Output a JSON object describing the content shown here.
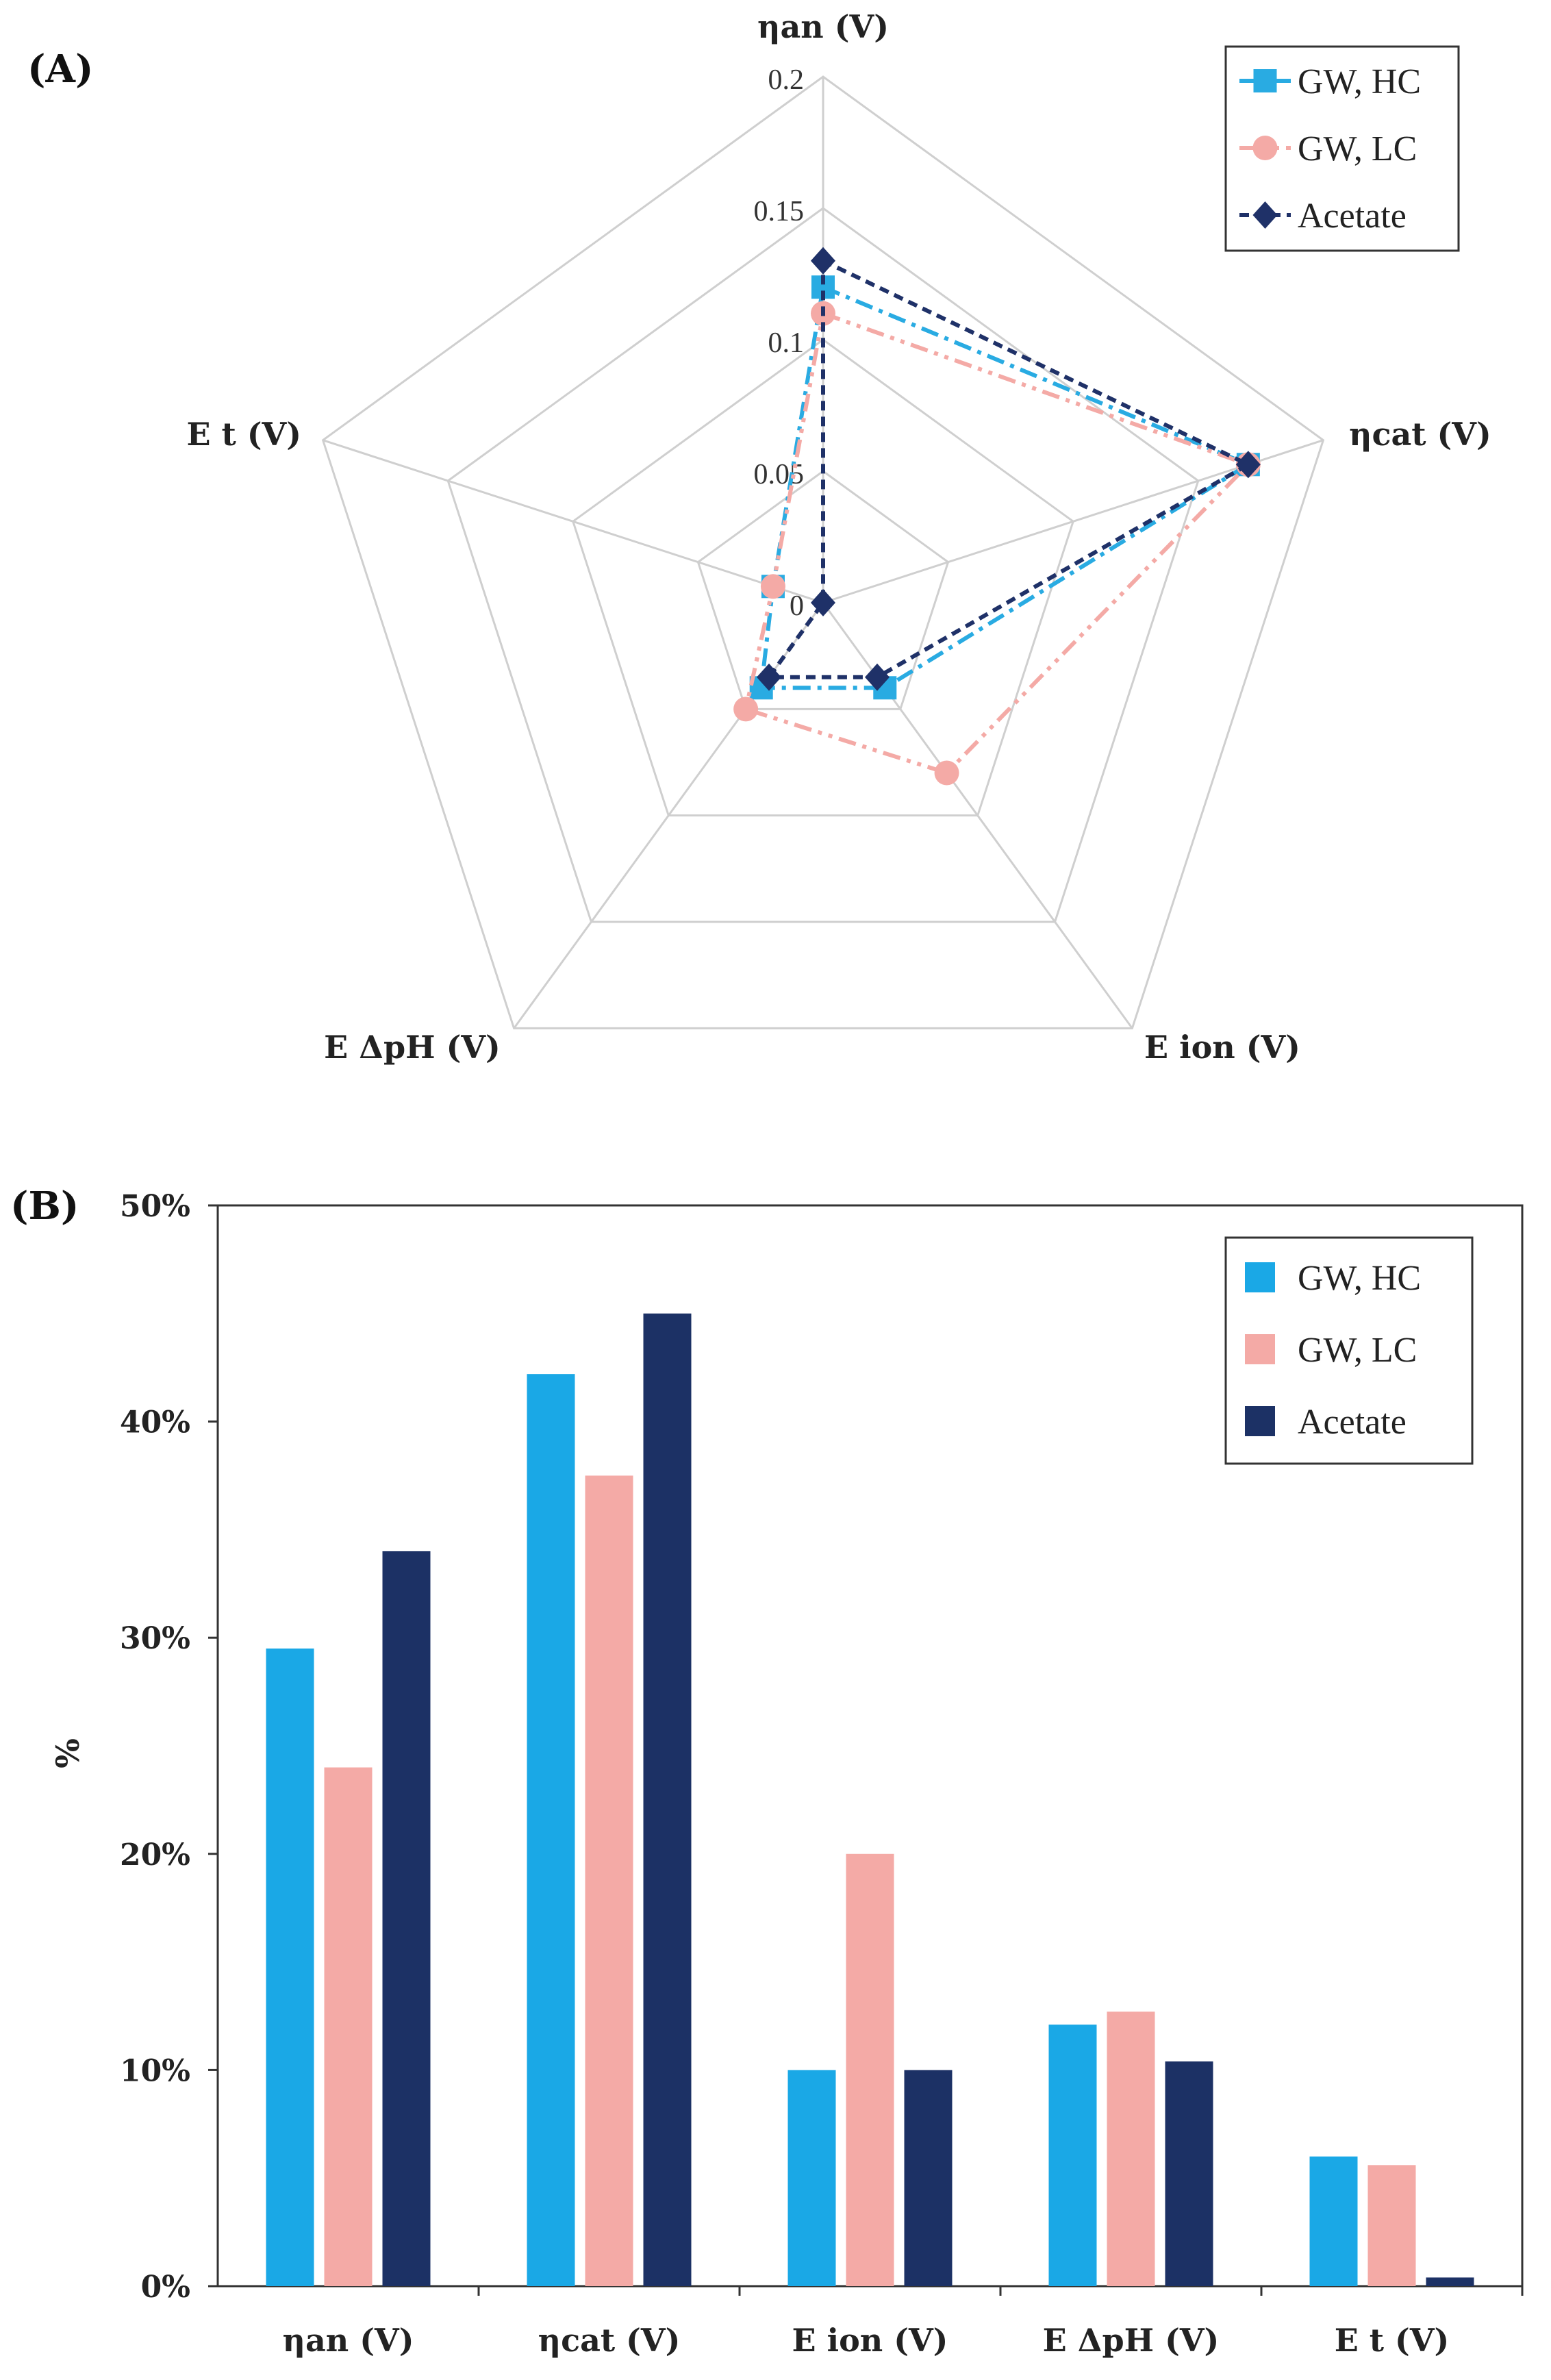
{
  "chart_data": [
    {
      "panel": "(A)",
      "type": "radar",
      "axes": [
        "ηan (V)",
        "ηcat (V)",
        "E ion (V)",
        "E ΔpH (V)",
        "E t (V)"
      ],
      "radial_ticks": [
        "0",
        "0.05",
        "0.1",
        "0.15",
        "0.2"
      ],
      "range": [
        0,
        0.2
      ],
      "series": [
        {
          "name": "GW, HC",
          "color": "#29abe2",
          "marker": "square",
          "dash": "dashdot",
          "values": [
            0.12,
            0.17,
            0.04,
            0.04,
            0.02
          ]
        },
        {
          "name": "GW, LC",
          "color": "#f4aaa6",
          "marker": "circle",
          "dash": "dashdotdot",
          "values": [
            0.11,
            0.17,
            0.08,
            0.05,
            0.02
          ]
        },
        {
          "name": "Acetate",
          "color": "#1f3168",
          "marker": "diamond",
          "dash": "dashed",
          "values": [
            0.13,
            0.17,
            0.035,
            0.035,
            0.0
          ]
        }
      ]
    },
    {
      "panel": "(B)",
      "type": "bar",
      "categories": [
        "ηan (V)",
        "ηcat (V)",
        "E ion (V)",
        "E ΔpH (V)",
        "E t (V)"
      ],
      "ylabel": "%",
      "yticks": [
        "0%",
        "10%",
        "20%",
        "30%",
        "40%",
        "50%"
      ],
      "ylim": [
        0,
        50
      ],
      "series": [
        {
          "name": "GW, HC",
          "color": "#1aa8e6",
          "values": [
            29.5,
            42.2,
            10.0,
            12.1,
            6.0
          ]
        },
        {
          "name": "GW, LC",
          "color": "#f4aaa6",
          "values": [
            24.0,
            37.5,
            20.0,
            12.7,
            5.6
          ]
        },
        {
          "name": "Acetate",
          "color": "#1c3165",
          "values": [
            34.0,
            45.0,
            10.0,
            10.4,
            0.4
          ]
        }
      ]
    }
  ]
}
